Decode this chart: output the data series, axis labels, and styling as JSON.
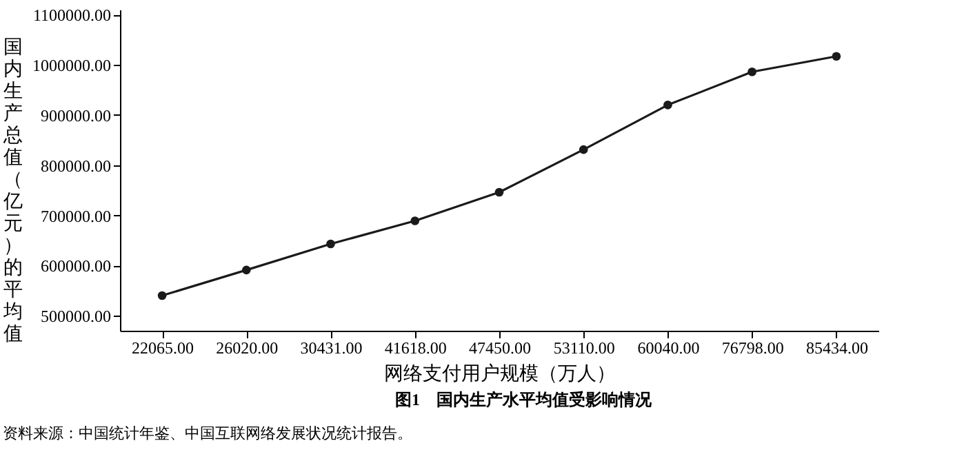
{
  "chart_data": {
    "type": "line",
    "title": "图1　国内生产水平均值受影响情况",
    "xlabel": "网络支付用户规模（万人）",
    "ylabel": "国内生产总值（亿元）的平均值",
    "categories": [
      "22065.00",
      "26020.00",
      "30431.00",
      "41618.00",
      "47450.00",
      "53110.00",
      "60040.00",
      "76798.00",
      "85434.00"
    ],
    "series": [
      {
        "color": "#1a1a1a",
        "values": [
          540000,
          591000,
          643000,
          689000,
          746000,
          831000,
          920000,
          986000,
          1017000
        ]
      }
    ],
    "ylim": [
      470000,
      1110000
    ],
    "yticks": [
      {
        "value": 500000,
        "label": "500000.00"
      },
      {
        "value": 600000,
        "label": "600000.00"
      },
      {
        "value": 700000,
        "label": "700000.00"
      },
      {
        "value": 800000,
        "label": "800000.00"
      },
      {
        "value": 900000,
        "label": "900000.00"
      },
      {
        "value": 1000000,
        "label": "1000000.00"
      },
      {
        "value": 1100000,
        "label": "1100000.00"
      }
    ],
    "grid": false,
    "legend": false,
    "marker": "circle",
    "line_style": "solid",
    "annotations": [
      "资料来源：中国统计年鉴、中国互联网络发展状况统计报告。"
    ]
  }
}
